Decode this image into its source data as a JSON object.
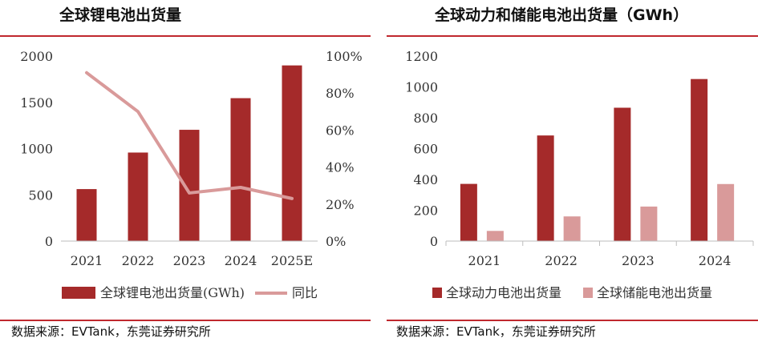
{
  "left": {
    "title": "全球锂电池出货量",
    "source": "数据来源：EVTank，东莞证券研究所",
    "colors": {
      "bar": "#a52a2a",
      "line": "#d99a9a"
    }
  },
  "right": {
    "title": "全球动力和储能电池出货量（GWh）",
    "source": "数据来源：EVTank，东莞证券研究所",
    "colors": {
      "power": "#a52a2a",
      "storage": "#d99a9a"
    }
  },
  "chart_data": [
    {
      "type": "bar",
      "title": "全球锂电池出货量",
      "categories": [
        "2021",
        "2022",
        "2023",
        "2024",
        "2025E"
      ],
      "ylim": [
        0,
        2000
      ],
      "yticks": [
        "0",
        "500",
        "1000",
        "1500",
        "2000"
      ],
      "y2lim": [
        0,
        100
      ],
      "y2ticks": [
        "0%",
        "20%",
        "40%",
        "60%",
        "80%",
        "100%"
      ],
      "series": [
        {
          "name": "全球锂电池出货量(GWh)",
          "kind": "bar",
          "axis": "left",
          "values": [
            562,
            957,
            1203,
            1545,
            1899
          ]
        },
        {
          "name": "同比",
          "kind": "line",
          "axis": "right",
          "values": [
            91,
            70,
            26,
            29,
            23
          ]
        }
      ],
      "legend_position": "bottom"
    },
    {
      "type": "bar",
      "title": "全球动力和储能电池出货量（GWh）",
      "categories": [
        "2021",
        "2022",
        "2023",
        "2024"
      ],
      "ylim": [
        0,
        1200
      ],
      "yticks": [
        "0",
        "200",
        "400",
        "600",
        "800",
        "1000",
        "1200"
      ],
      "series": [
        {
          "name": "全球动力电池出货量",
          "values": [
            371,
            685,
            865,
            1051
          ]
        },
        {
          "name": "全球储能电池出货量",
          "values": [
            66,
            160,
            224,
            370
          ]
        }
      ],
      "legend_position": "bottom"
    }
  ]
}
